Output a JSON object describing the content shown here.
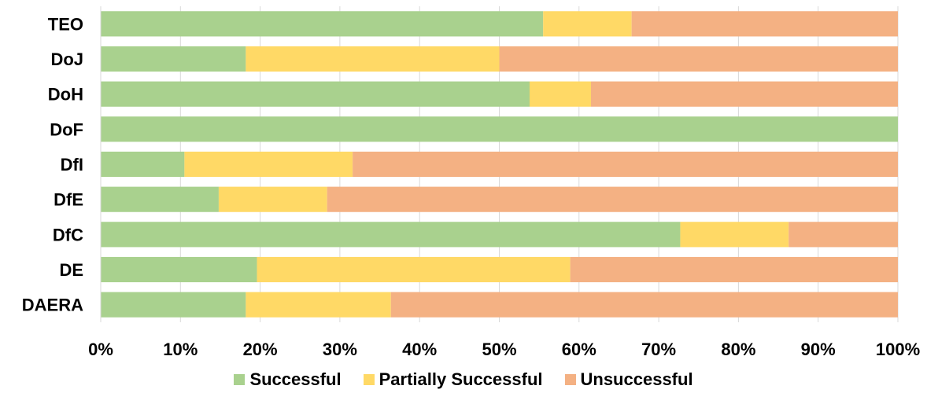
{
  "chart_data": {
    "type": "bar",
    "orientation": "horizontal",
    "stacked": "percent",
    "categories": [
      "TEO",
      "DoJ",
      "DoH",
      "DoF",
      "DfI",
      "DfE",
      "DfC",
      "DE",
      "DAERA"
    ],
    "series": [
      {
        "name": "Successful",
        "color": "#a9d18e",
        "values": [
          55.5,
          18.2,
          53.8,
          100,
          10.5,
          14.8,
          72.7,
          19.6,
          18.2
        ]
      },
      {
        "name": "Partially Successful",
        "color": "#ffd966",
        "values": [
          11.1,
          31.8,
          7.7,
          0,
          21.1,
          13.6,
          13.6,
          39.3,
          18.2
        ]
      },
      {
        "name": "Unsuccessful",
        "color": "#f4b183",
        "values": [
          33.4,
          50.0,
          38.5,
          0,
          68.4,
          71.6,
          13.7,
          41.1,
          63.6
        ]
      }
    ],
    "xlim": [
      0,
      100
    ],
    "x_ticks": [
      "0%",
      "10%",
      "20%",
      "30%",
      "40%",
      "50%",
      "60%",
      "70%",
      "80%",
      "90%",
      "100%"
    ],
    "grid": "vertical",
    "legend_position": "bottom"
  }
}
